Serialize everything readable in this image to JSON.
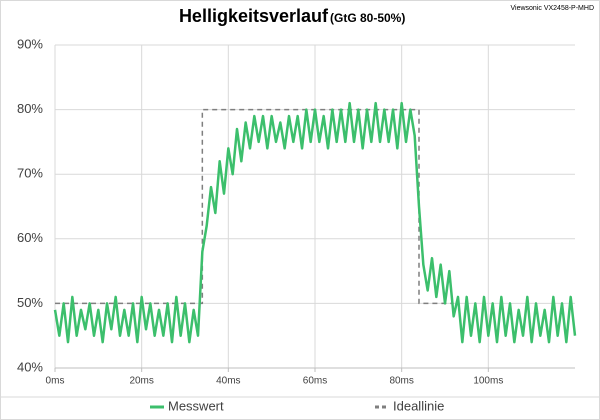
{
  "chart_data": {
    "type": "line",
    "title": "Helligkeitsverlauf",
    "subtitle": "(GtG 80-50%)",
    "annotation": "Viewsonic VX2458-P-MHD",
    "series": [
      {
        "name": "Messwert",
        "color": "#3cbf6c",
        "dash": false,
        "x": [
          0,
          1,
          2,
          3,
          4,
          5,
          6,
          7,
          8,
          9,
          10,
          11,
          12,
          13,
          14,
          15,
          16,
          17,
          18,
          19,
          20,
          21,
          22,
          23,
          24,
          25,
          26,
          27,
          28,
          29,
          30,
          31,
          32,
          33,
          34,
          35,
          36,
          37,
          38,
          39,
          40,
          41,
          42,
          43,
          44,
          45,
          46,
          47,
          48,
          49,
          50,
          51,
          52,
          53,
          54,
          55,
          56,
          57,
          58,
          59,
          60,
          61,
          62,
          63,
          64,
          65,
          66,
          67,
          68,
          69,
          70,
          71,
          72,
          73,
          74,
          75,
          76,
          77,
          78,
          79,
          80,
          81,
          82,
          83,
          84,
          85,
          86,
          87,
          88,
          89,
          90,
          91,
          92,
          93,
          94,
          95,
          96,
          97,
          98,
          99,
          100,
          101,
          102,
          103,
          104,
          105,
          106,
          107,
          108,
          109,
          110,
          111,
          112,
          113,
          114,
          115,
          116,
          117,
          118,
          119,
          120
        ],
        "values": [
          49,
          45,
          50,
          44,
          51,
          45,
          49,
          46,
          50,
          45,
          49,
          44,
          50,
          46,
          51,
          45,
          49,
          45,
          50,
          44,
          51,
          46,
          50,
          45,
          49,
          45,
          50,
          44,
          51,
          45,
          50,
          44,
          49,
          45,
          58,
          62,
          68,
          64,
          72,
          67,
          74,
          70,
          77,
          72,
          78,
          74,
          79,
          75,
          79,
          74,
          79,
          75,
          78,
          74,
          79,
          75,
          79,
          74,
          80,
          75,
          80,
          75,
          79,
          74,
          80,
          75,
          80,
          75,
          81,
          75,
          80,
          74,
          80,
          75,
          81,
          75,
          80,
          75,
          80,
          74,
          81,
          75,
          80,
          76,
          65,
          56,
          52,
          57,
          51,
          56,
          50,
          55,
          48,
          51,
          44,
          51,
          45,
          50,
          44,
          51,
          45,
          50,
          44,
          51,
          45,
          50,
          44,
          49,
          45,
          51,
          44,
          50,
          45,
          49,
          44,
          51,
          45,
          50,
          44,
          51,
          45
        ]
      },
      {
        "name": "Ideallinie",
        "color": "#7f7f7f",
        "dash": true,
        "x": [
          0,
          34,
          34,
          84,
          84,
          92
        ],
        "values": [
          50,
          50,
          80,
          80,
          50,
          50
        ]
      }
    ],
    "xlim": [
      0,
      120
    ],
    "xticks": [
      {
        "value": 0,
        "label": "0ms"
      },
      {
        "value": 20,
        "label": "20ms"
      },
      {
        "value": 40,
        "label": "40ms"
      },
      {
        "value": 60,
        "label": "60ms"
      },
      {
        "value": 80,
        "label": "80ms"
      },
      {
        "value": 100,
        "label": "100ms"
      }
    ],
    "ylim": [
      40,
      90
    ],
    "yticks": [
      {
        "value": 40,
        "label": "40%"
      },
      {
        "value": 50,
        "label": "50%"
      },
      {
        "value": 60,
        "label": "60%"
      },
      {
        "value": 70,
        "label": "70%"
      },
      {
        "value": 80,
        "label": "80%"
      },
      {
        "value": 90,
        "label": "90%"
      }
    ],
    "grid": true,
    "legend": "bottom"
  }
}
